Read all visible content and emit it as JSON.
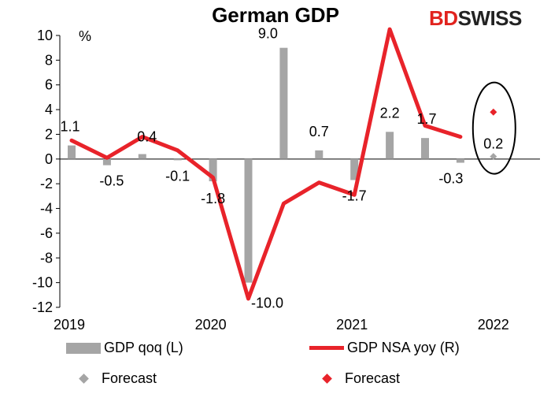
{
  "chart_data": {
    "type": "bar+line",
    "title": "German GDP",
    "y_unit": "%",
    "ylim": [
      -12,
      10
    ],
    "y_ticks": [
      10,
      8,
      6,
      4,
      2,
      0,
      -2,
      -4,
      -6,
      -8,
      -10,
      -12
    ],
    "x_ticks": [
      "2019",
      "2020",
      "2021",
      "2022"
    ],
    "series": [
      {
        "name": "GDP qoq (L)",
        "kind": "bar",
        "color": "#a5a5a5",
        "values": [
          1.1,
          -0.5,
          0.4,
          -0.1,
          -1.8,
          -10.0,
          9.0,
          0.7,
          -1.7,
          2.2,
          1.7,
          -0.3
        ],
        "labels": [
          "1.1",
          "-0.5",
          "0.4",
          "-0.1",
          "-1.8",
          "-10.0",
          "9.0",
          "0.7",
          "-1.7",
          "2.2",
          "1.7",
          "-0.3"
        ]
      },
      {
        "name": "GDP NSA yoy (R)",
        "kind": "line",
        "color": "#e8232a",
        "values": [
          1.5,
          0.1,
          1.8,
          0.7,
          -1.5,
          -11.3,
          -3.6,
          -1.9,
          -2.9,
          10.5,
          2.7,
          1.8
        ]
      }
    ],
    "forecasts": [
      {
        "name": "Forecast",
        "series": "GDP qoq (L)",
        "value": 0.2,
        "label": "0.2",
        "color": "#a5a5a5"
      },
      {
        "name": "Forecast",
        "series": "GDP NSA yoy (R)",
        "value": 3.8,
        "color": "#e8232a"
      }
    ]
  },
  "brand": {
    "part1": "BD",
    "part2": "SWISS"
  },
  "legend": {
    "bar": "GDP qoq (L)",
    "line": "GDP NSA yoy (R)",
    "forecast_grey": "Forecast",
    "forecast_red": "Forecast"
  }
}
